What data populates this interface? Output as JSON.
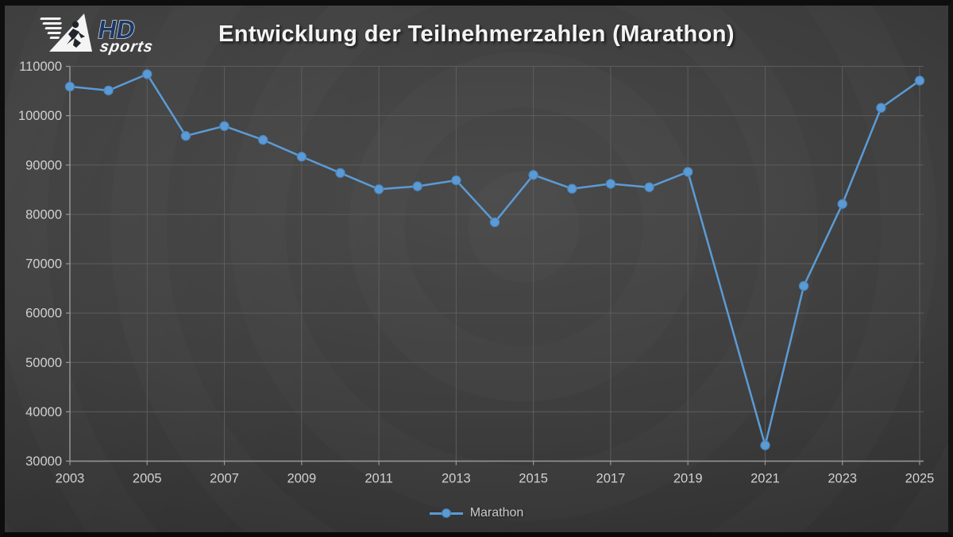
{
  "window": {
    "app": "HDsports participation chart"
  },
  "logo": {
    "hd_text": "HD",
    "sports_text": "sports"
  },
  "legend": {
    "label": "Marathon"
  },
  "colors": {
    "series": "#5B9BD5",
    "series_marker_edge": "#4a84bd",
    "grid": "#5d5d5d",
    "axis": "#9a9a9a",
    "tick_text": "#d0d0d0",
    "title_text": "#f4f4f4",
    "logo_navy": "#1d3a66"
  },
  "chart_data": {
    "type": "line",
    "title": "Entwicklung der Teilnehmerzahlen (Marathon)",
    "xlabel": "",
    "ylabel": "",
    "x": [
      2003,
      2004,
      2005,
      2006,
      2007,
      2008,
      2009,
      2010,
      2011,
      2012,
      2013,
      2014,
      2015,
      2016,
      2017,
      2018,
      2019,
      2020,
      2021,
      2022,
      2023,
      2024,
      2025
    ],
    "series": [
      {
        "name": "Marathon",
        "values": [
          105900,
          105100,
          108400,
          95900,
          97900,
          95100,
          91700,
          88400,
          85100,
          85700,
          86900,
          78400,
          88000,
          85200,
          86200,
          85500,
          88600,
          null,
          33200,
          65500,
          82100,
          101600,
          107100
        ]
      }
    ],
    "note_gap_year": 2020,
    "ylim": [
      30000,
      110000
    ],
    "ytick_step": 10000,
    "ytick_labels": [
      "30000",
      "40000",
      "50000",
      "60000",
      "70000",
      "80000",
      "90000",
      "100000",
      "110000"
    ],
    "xtick_labels": [
      "2003",
      "2005",
      "2007",
      "2009",
      "2011",
      "2013",
      "2015",
      "2017",
      "2019",
      "2021",
      "2023",
      "2025"
    ],
    "grid": true,
    "legend_position": "bottom-center"
  }
}
